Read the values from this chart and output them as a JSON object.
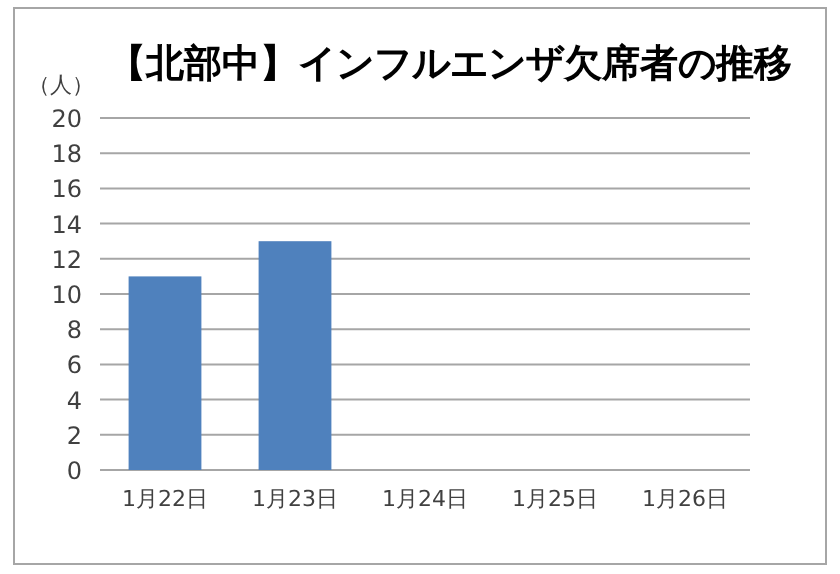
{
  "chart_data": {
    "type": "bar",
    "title": "【北部中】インフルエンザ欠席者の推移",
    "ylabel": "（人）",
    "categories": [
      "1月22日",
      "1月23日",
      "1月24日",
      "1月25日",
      "1月26日"
    ],
    "values": [
      11,
      13,
      null,
      null,
      null
    ],
    "color": "#4f81bd",
    "ylim": [
      0,
      20
    ],
    "yticks": [
      0,
      2,
      4,
      6,
      8,
      10,
      12,
      14,
      16,
      18,
      20
    ],
    "grid": "y"
  }
}
